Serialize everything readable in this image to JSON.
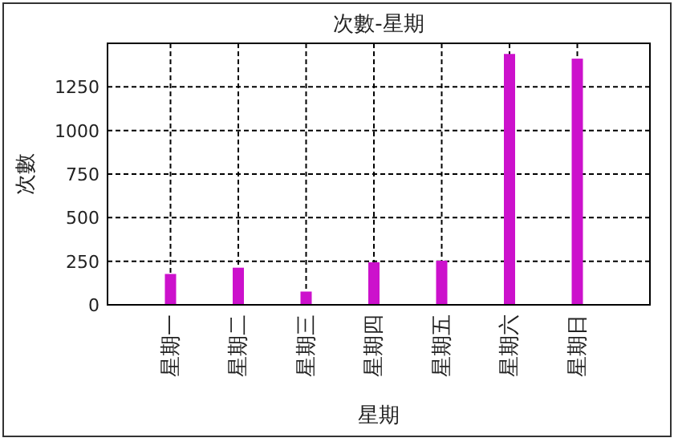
{
  "chart_data": {
    "type": "bar",
    "title": "次數-星期",
    "xlabel": "星期",
    "ylabel": "次數",
    "categories": [
      "星期一",
      "星期二",
      "星期三",
      "星期四",
      "星期五",
      "星期六",
      "星期日"
    ],
    "values": [
      177,
      213,
      76,
      244,
      253,
      1439,
      1412
    ],
    "color": "#cc11cc",
    "ylim": [
      0,
      1500
    ],
    "yticks": [
      0,
      250,
      500,
      750,
      1000,
      1250
    ],
    "grid": true
  }
}
